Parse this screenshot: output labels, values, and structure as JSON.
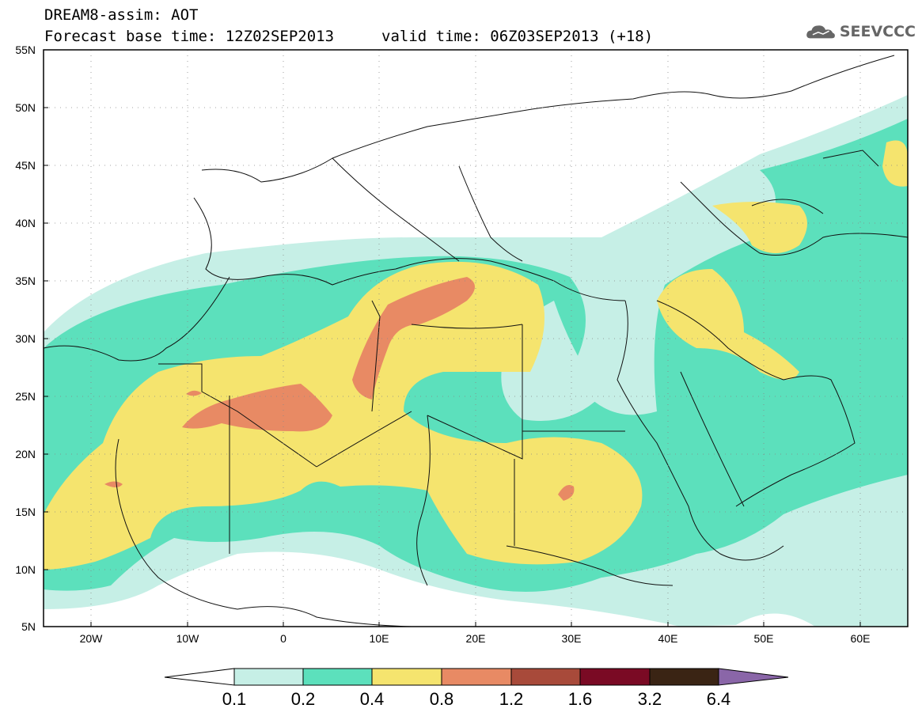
{
  "header": {
    "line1": "DREAM8-assim: AOT",
    "line2": "Forecast base time: 12Z02SEP2013",
    "valid": "valid time: 06Z03SEP2013 (+18)",
    "logo_text": "SEEVCCC",
    "logo_icon": "cloud-icon"
  },
  "map": {
    "lat_labels": [
      "55N",
      "50N",
      "45N",
      "40N",
      "35N",
      "30N",
      "25N",
      "20N",
      "15N",
      "10N",
      "5N"
    ],
    "lon_labels": [
      "20W",
      "10W",
      "0",
      "10E",
      "20E",
      "30E",
      "40E",
      "50E",
      "60E"
    ]
  },
  "colorbar": {
    "tick_labels": [
      "0.1",
      "0.2",
      "0.4",
      "0.8",
      "1.2",
      "1.6",
      "3.2",
      "6.4"
    ],
    "colors": [
      "#ffffff",
      "#c6efe6",
      "#5ce0bc",
      "#f5e46e",
      "#e88a64",
      "#a84a3a",
      "#7a0a24",
      "#3a2414",
      "#8a66a8"
    ]
  }
}
